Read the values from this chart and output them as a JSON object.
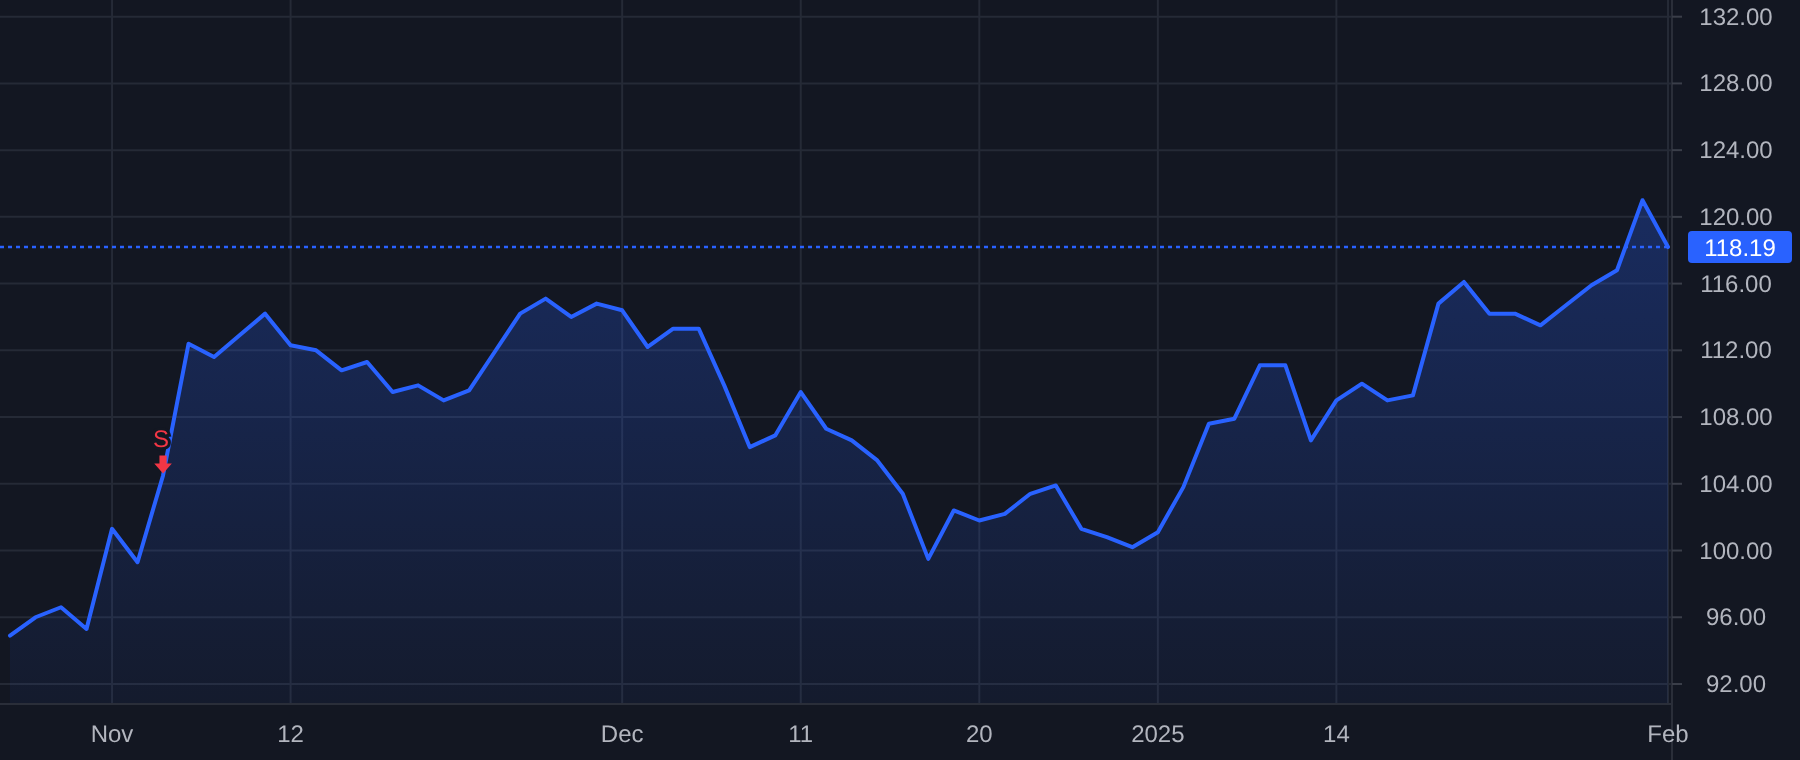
{
  "chart_data": {
    "type": "area",
    "categories": [
      null,
      null,
      null,
      null,
      "Nov",
      null,
      null,
      null,
      null,
      null,
      null,
      "12",
      null,
      null,
      null,
      null,
      null,
      null,
      null,
      null,
      null,
      null,
      null,
      null,
      "Dec",
      null,
      null,
      null,
      null,
      null,
      null,
      "11",
      null,
      null,
      null,
      null,
      null,
      null,
      "20",
      null,
      null,
      null,
      null,
      null,
      null,
      "2025",
      null,
      null,
      null,
      null,
      null,
      null,
      "14",
      null,
      null,
      null,
      null,
      null,
      null,
      null,
      null,
      null,
      null,
      null,
      null,
      "Feb"
    ],
    "series": [
      {
        "color": "#2962ff",
        "values": [
          94.9,
          96.0,
          96.6,
          95.3,
          101.3,
          99.3,
          104.5,
          112.4,
          111.6,
          112.9,
          114.2,
          112.3,
          112.0,
          110.8,
          111.3,
          109.5,
          109.9,
          109.0,
          109.6,
          111.9,
          114.2,
          115.1,
          114.0,
          114.8,
          114.4,
          112.2,
          113.3,
          113.3,
          109.9,
          106.2,
          106.9,
          109.5,
          107.3,
          106.6,
          105.4,
          103.4,
          99.5,
          102.4,
          101.8,
          102.2,
          103.4,
          103.9,
          101.3,
          100.8,
          100.2,
          101.1,
          103.8,
          107.6,
          107.9,
          111.1,
          111.1,
          106.6,
          109.0,
          110.0,
          109.0,
          109.3,
          114.8,
          116.1,
          114.2,
          114.2,
          113.5,
          114.7,
          115.9,
          116.8,
          121.0,
          118.19
        ]
      }
    ],
    "ylim": [
      90.8,
      133
    ],
    "yticks": [
      {
        "value": 92,
        "label": "92.00"
      },
      {
        "value": 96,
        "label": "96.00"
      },
      {
        "value": 100,
        "label": "100.00"
      },
      {
        "value": 104,
        "label": "104.00"
      },
      {
        "value": 108,
        "label": "108.00"
      },
      {
        "value": 112,
        "label": "112.00"
      },
      {
        "value": 116,
        "label": "116.00"
      },
      {
        "value": 120,
        "label": "120.00"
      },
      {
        "value": 124,
        "label": "124.00"
      },
      {
        "value": 128,
        "label": "128.00"
      },
      {
        "value": 132,
        "label": "132.00"
      }
    ],
    "ref_lines": [
      {
        "axis": "y",
        "value": 118.19,
        "label": "118.19",
        "color": "#2962ff",
        "line_style": "dotted"
      }
    ],
    "annotations": [
      {
        "text": "S",
        "y": 104.5
      }
    ],
    "grid": true
  }
}
